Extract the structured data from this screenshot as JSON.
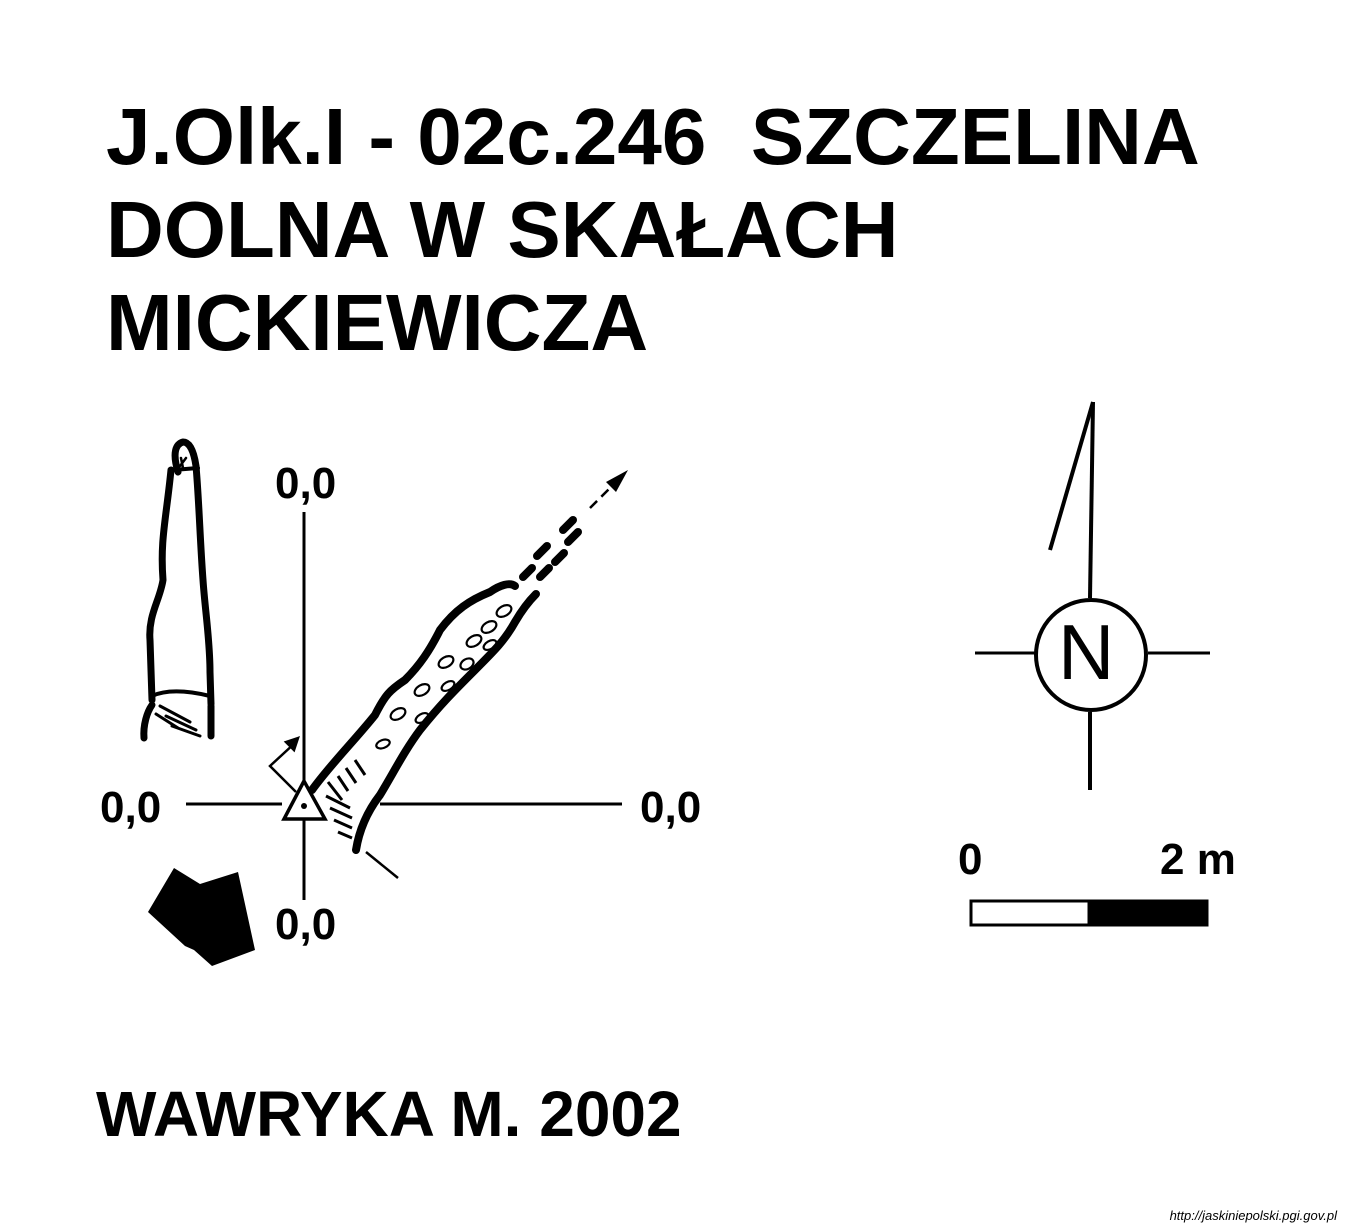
{
  "title": {
    "line1": "J.Olk.I - 02c.246  SZCZELINA",
    "line2": "DOLNA W SKAŁACH",
    "line3": "MICKIEWICZA"
  },
  "section_coords": {
    "top": "0,0",
    "left": "0,0",
    "right": "0,0",
    "bottom": "0,0"
  },
  "compass": {
    "label": "N"
  },
  "scale_bar": {
    "start_label": "0",
    "end_label": "2 m"
  },
  "author": "WAWRYKA M. 2002",
  "source_url": "http://jaskiniepolski.pgi.gov.pl",
  "colors": {
    "ink": "#000000",
    "paper": "#ffffff"
  }
}
